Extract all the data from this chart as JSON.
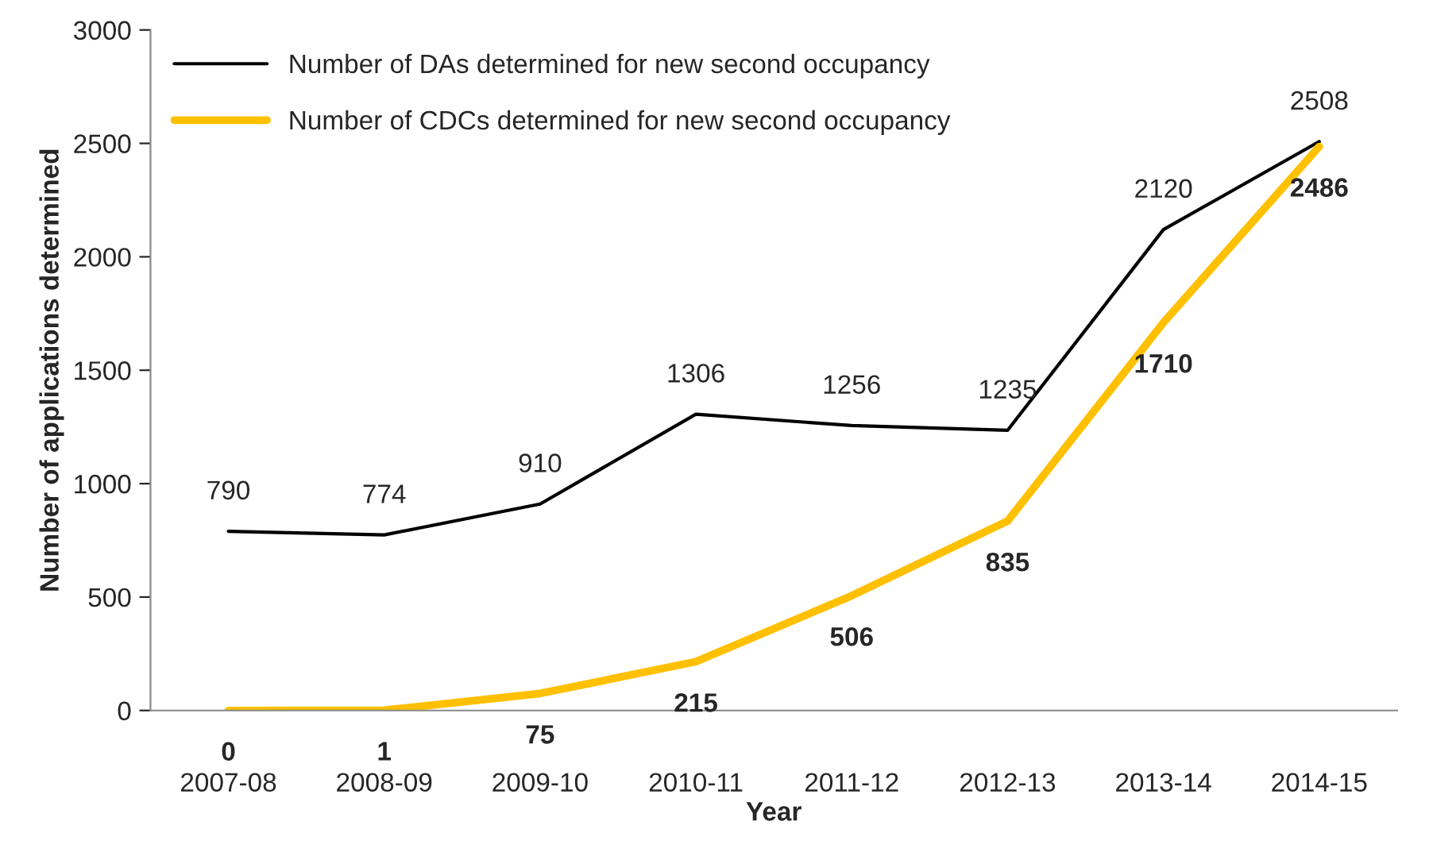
{
  "chart_data": {
    "type": "line",
    "xlabel": "Year",
    "ylabel": "Number of applications determined",
    "categories": [
      "2007-08",
      "2008-09",
      "2009-10",
      "2010-11",
      "2011-12",
      "2012-13",
      "2013-14",
      "2014-15"
    ],
    "series": [
      {
        "name": "Number of DAs determined for new second occupancy",
        "color": "#000000",
        "values": [
          790,
          774,
          910,
          1306,
          1256,
          1235,
          2120,
          2508
        ]
      },
      {
        "name": "Number of CDCs determined for new second occupancy",
        "color": "#ffc000",
        "values": [
          0,
          1,
          75,
          215,
          506,
          835,
          1710,
          2486
        ]
      }
    ],
    "ylim": [
      0,
      3000
    ],
    "yticks": [
      0,
      500,
      1000,
      1500,
      2000,
      2500,
      3000
    ],
    "data_labels": true,
    "legend": "top left",
    "grid": false,
    "marker": "none",
    "line_style": "solid"
  }
}
